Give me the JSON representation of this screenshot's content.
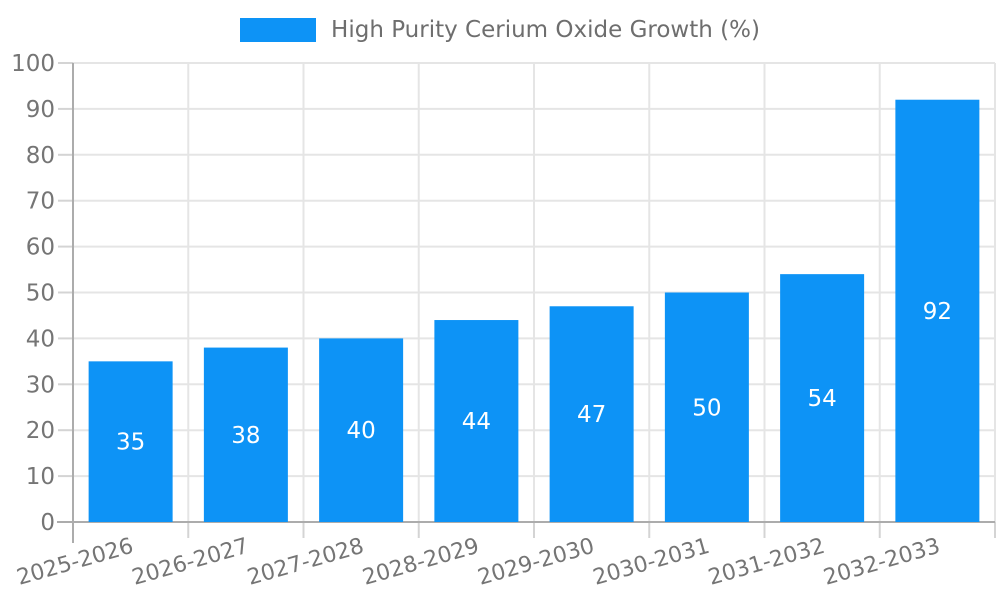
{
  "chart_data": {
    "type": "bar",
    "categories": [
      "2025-2026",
      "2026-2027",
      "2027-2028",
      "2028-2029",
      "2029-2030",
      "2030-2031",
      "2031-2032",
      "2032-2033"
    ],
    "series": [
      {
        "name": "High Purity Cerium Oxide Growth (%)",
        "values": [
          35,
          38,
          40,
          44,
          47,
          50,
          54,
          92
        ],
        "color": "#0D93F6"
      }
    ],
    "value_labels": [
      "35",
      "38",
      "40",
      "44",
      "47",
      "50",
      "54",
      "92"
    ],
    "yticks": [
      0,
      10,
      20,
      30,
      40,
      50,
      60,
      70,
      80,
      90,
      100
    ],
    "ylim": [
      0,
      100
    ],
    "ytick_step": 10,
    "xlabel": "",
    "ylabel": "",
    "grid": true,
    "legend": {
      "position": "top",
      "entries": [
        {
          "label": "High Purity Cerium Oxide Growth (%)",
          "color": "#0D93F6"
        }
      ]
    },
    "colors": {
      "bar": "#0D93F6",
      "value_label": "#FFFFFF",
      "axis_line": "#ACACAC",
      "gridline": "#E5E5E5",
      "tick": "#D4D4D4",
      "tick_label": "#757575",
      "legend_text": "#6E6E6E",
      "background": "#FFFFFF"
    }
  }
}
